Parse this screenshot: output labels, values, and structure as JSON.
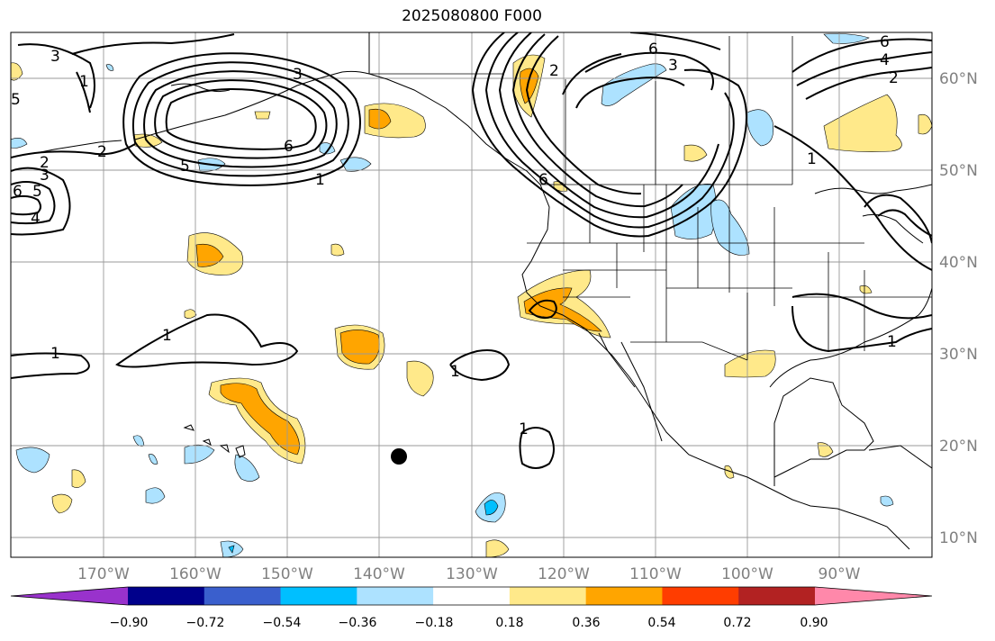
{
  "title": "2025080800 F000",
  "lon_ticks": [
    "170°W",
    "160°W",
    "150°W",
    "140°W",
    "130°W",
    "120°W",
    "110°W",
    "100°W",
    "90°W"
  ],
  "lat_ticks": [
    "60°N",
    "50°N",
    "40°N",
    "30°N",
    "20°N",
    "10°N"
  ],
  "colorbar": {
    "ticks": [
      "−0.90",
      "−0.72",
      "−0.54",
      "−0.36",
      "−0.18",
      "0.18",
      "0.36",
      "0.54",
      "0.72",
      "0.90"
    ],
    "colors": [
      "#9932cc",
      "#00008b",
      "#3a5fcd",
      "#00bfff",
      "#ade2ff",
      "#ffffff",
      "#ffe98a",
      "#ffa500",
      "#ff3d00",
      "#b22222",
      "#ff88aa"
    ]
  },
  "contour_labels": [
    "3",
    "1",
    "5",
    "6",
    "2",
    "3",
    "6",
    "5",
    "2",
    "4",
    "1",
    "5",
    "6",
    "3",
    "6",
    "2",
    "4",
    "6",
    "2",
    "3",
    "1",
    "1",
    "1",
    "1",
    "1",
    "1"
  ]
}
